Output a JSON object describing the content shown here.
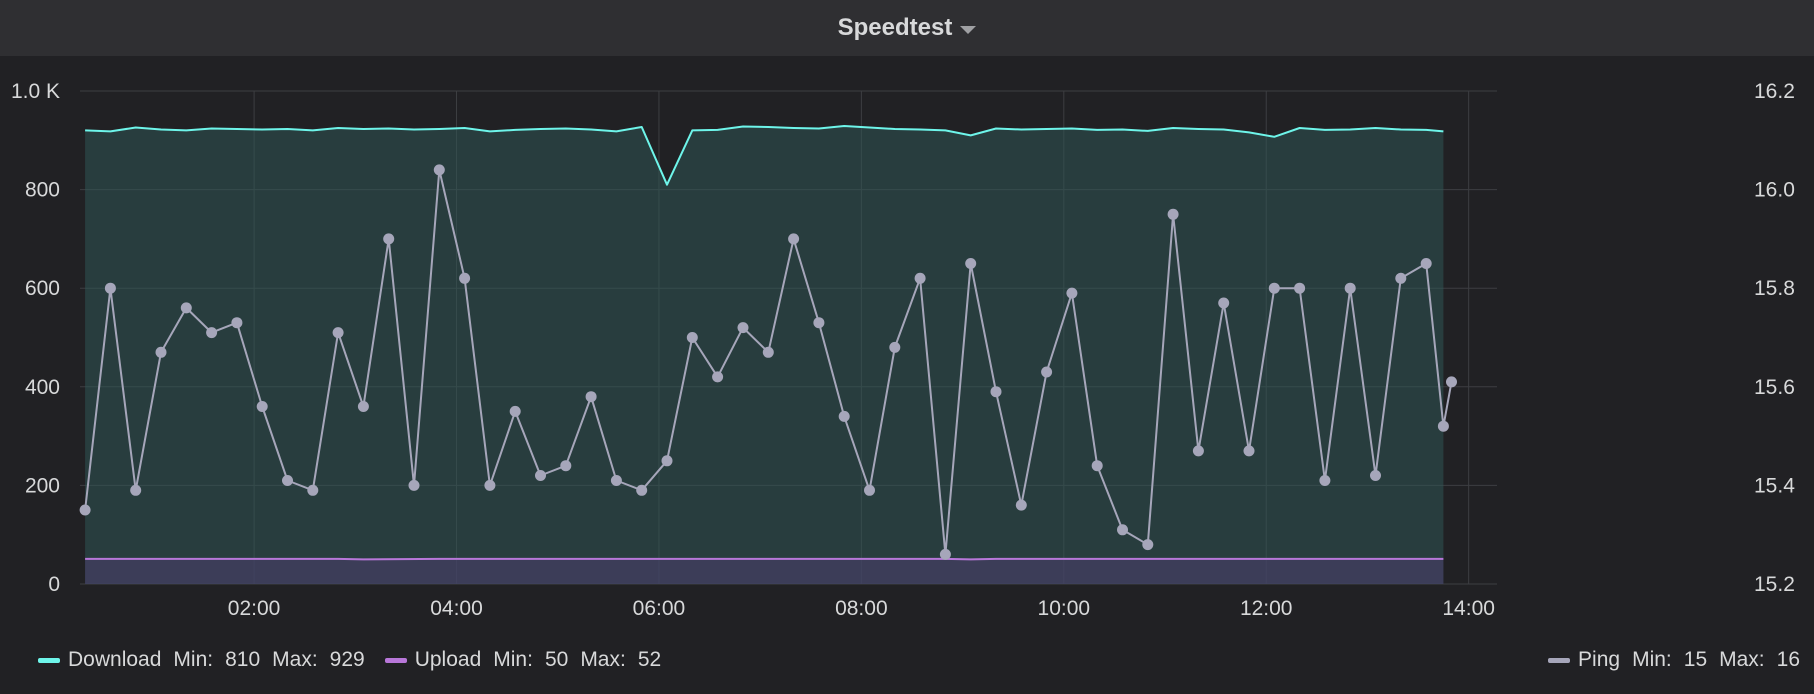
{
  "panel": {
    "title": "Speedtest"
  },
  "chart_data": {
    "type": "line",
    "x_unit": "time",
    "x_ticks": [
      "02:00",
      "04:00",
      "06:00",
      "08:00",
      "10:00",
      "12:00",
      "14:00"
    ],
    "x_tick_hours": [
      2,
      4,
      6,
      8,
      10,
      12,
      14
    ],
    "xlim_hours": [
      0.28,
      14.28
    ],
    "left_axis": {
      "ticks": [
        "0",
        "200",
        "400",
        "600",
        "800",
        "1.0 K"
      ],
      "ylim": [
        0,
        1000
      ]
    },
    "right_axis": {
      "ticks": [
        "15.2",
        "15.4",
        "15.6",
        "15.8",
        "16.0",
        "16.2"
      ],
      "ylim": [
        15.2,
        16.2
      ]
    },
    "grid": true,
    "legend_placement": "bottom",
    "series": [
      {
        "name": "Download",
        "axis": "left",
        "color": "#6ef5ea",
        "fill": true,
        "min_label": "Min:",
        "min": "810",
        "max_label": "Max:",
        "max": "929",
        "x": [
          0.33,
          0.58,
          0.83,
          1.08,
          1.33,
          1.58,
          1.83,
          2.08,
          2.33,
          2.58,
          2.83,
          3.08,
          3.33,
          3.58,
          3.83,
          4.08,
          4.33,
          4.58,
          4.83,
          5.08,
          5.33,
          5.58,
          5.83,
          6.08,
          6.33,
          6.58,
          6.83,
          7.08,
          7.33,
          7.58,
          7.83,
          8.08,
          8.33,
          8.58,
          8.83,
          9.08,
          9.33,
          9.58,
          9.83,
          10.08,
          10.33,
          10.58,
          10.83,
          11.08,
          11.33,
          11.58,
          11.83,
          12.08,
          12.33,
          12.58,
          12.83,
          13.08,
          13.33,
          13.58,
          13.75
        ],
        "values": [
          920,
          918,
          926,
          922,
          920,
          924,
          923,
          922,
          923,
          920,
          925,
          923,
          924,
          922,
          923,
          925,
          918,
          921,
          923,
          924,
          922,
          918,
          927,
          810,
          920,
          921,
          928,
          927,
          925,
          924,
          929,
          926,
          923,
          922,
          920,
          910,
          924,
          922,
          923,
          924,
          921,
          922,
          919,
          925,
          923,
          922,
          916,
          907,
          925,
          921,
          922,
          925,
          922,
          921,
          918
        ]
      },
      {
        "name": "Upload",
        "axis": "left",
        "color": "#b877d9",
        "fill": true,
        "min_label": "Min:",
        "min": "50",
        "max_label": "Max:",
        "max": "52",
        "x": [
          0.33,
          1.33,
          2.33,
          2.83,
          3.08,
          3.83,
          4.83,
          5.83,
          6.83,
          7.83,
          8.83,
          9.08,
          9.33,
          10.33,
          11.33,
          11.83,
          12.33,
          13.33,
          13.75
        ],
        "values": [
          51,
          51,
          51,
          51,
          50,
          51,
          51,
          51,
          51,
          51,
          51,
          50,
          51,
          51,
          51,
          51,
          51,
          51,
          51
        ]
      },
      {
        "name": "Ping",
        "axis": "right",
        "color": "#a6a6ba",
        "points": true,
        "min_label": "Min:",
        "min": "15",
        "max_label": "Max:",
        "max": "16",
        "x": [
          0.33,
          0.58,
          0.83,
          1.08,
          1.33,
          1.58,
          1.83,
          2.08,
          2.33,
          2.58,
          2.83,
          3.08,
          3.33,
          3.58,
          3.83,
          4.08,
          4.33,
          4.58,
          4.83,
          5.08,
          5.33,
          5.58,
          5.83,
          6.08,
          6.33,
          6.58,
          6.83,
          7.08,
          7.33,
          7.58,
          7.83,
          8.08,
          8.33,
          8.58,
          8.83,
          9.08,
          9.33,
          9.58,
          9.83,
          10.08,
          10.33,
          10.58,
          10.83,
          11.08,
          11.33,
          11.58,
          11.83,
          12.08,
          12.33,
          12.58,
          12.83,
          13.08,
          13.33,
          13.58,
          13.75,
          13.83
        ],
        "values": [
          15.35,
          15.8,
          15.39,
          15.67,
          15.76,
          15.71,
          15.73,
          15.56,
          15.41,
          15.39,
          15.71,
          15.56,
          15.9,
          15.4,
          16.04,
          15.82,
          15.4,
          15.55,
          15.42,
          15.44,
          15.58,
          15.41,
          15.39,
          15.45,
          15.7,
          15.62,
          15.72,
          15.67,
          15.9,
          15.73,
          15.54,
          15.39,
          15.68,
          15.82,
          15.26,
          15.85,
          15.59,
          15.36,
          15.63,
          15.79,
          15.44,
          15.31,
          15.28,
          15.95,
          15.47,
          15.77,
          15.47,
          15.8,
          15.8,
          15.41,
          15.8,
          15.42,
          15.82,
          15.85,
          15.52,
          15.61
        ]
      }
    ]
  }
}
